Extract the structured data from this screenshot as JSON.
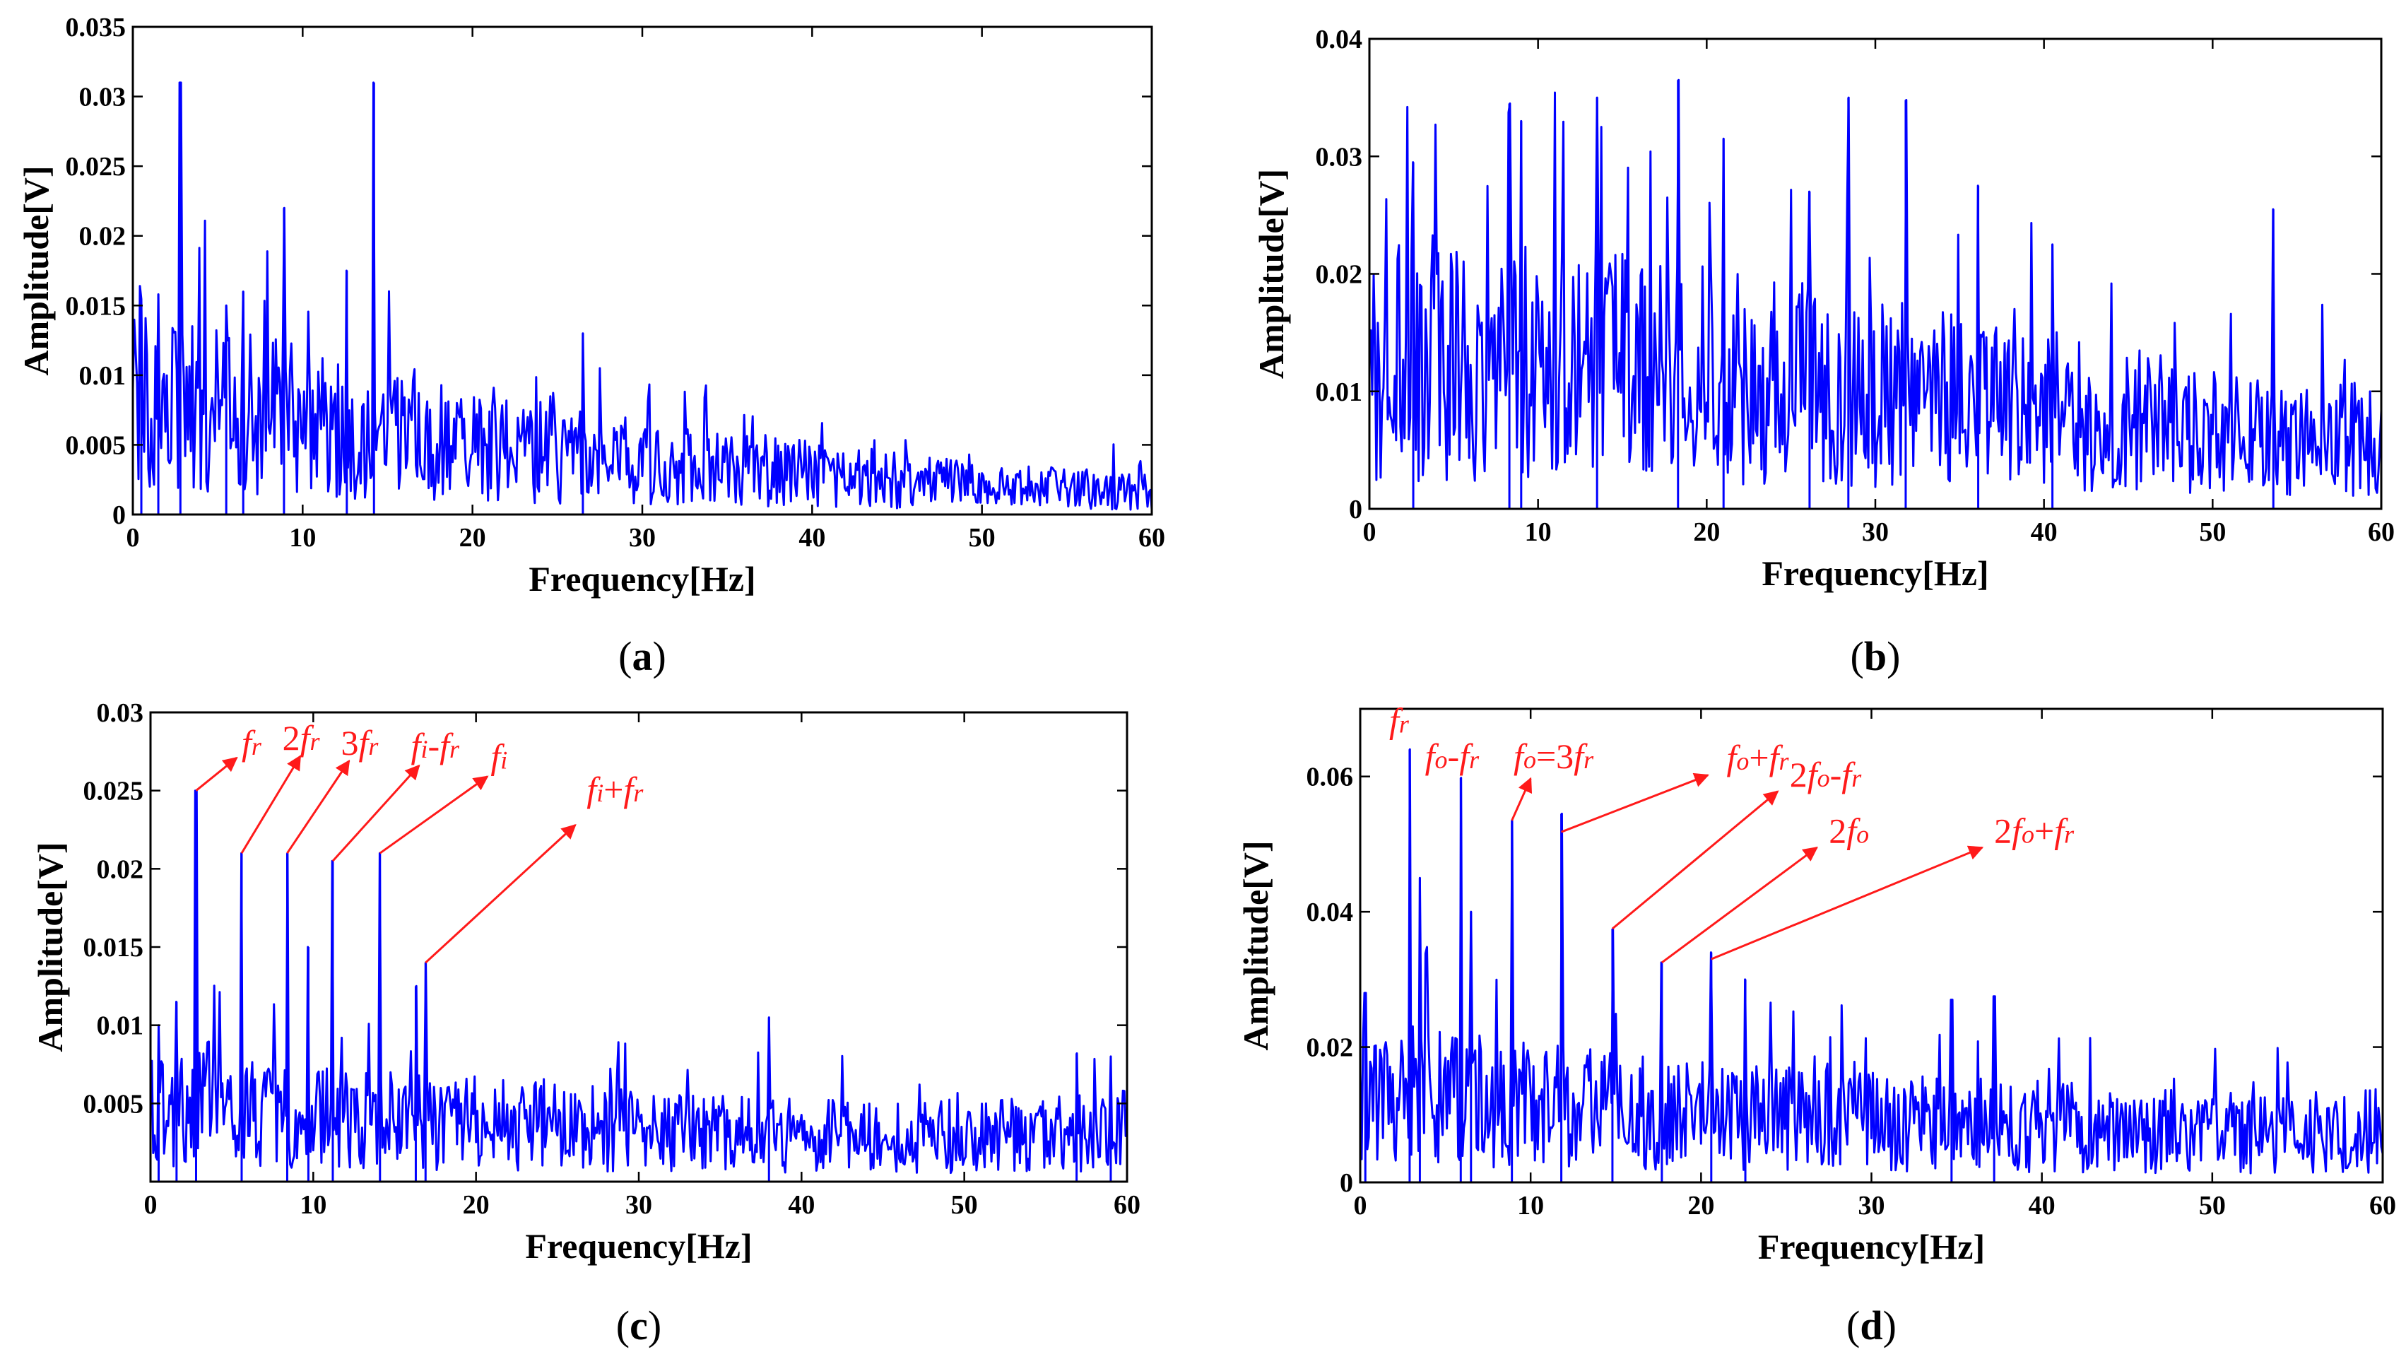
{
  "colors": {
    "signal": "#0000ff",
    "annotation": "#ff1a1a",
    "axis": "#000000"
  },
  "chart_data": [
    {
      "id": "a",
      "type": "line",
      "caption_letter": "a",
      "xlabel": "Frequency[Hz]",
      "ylabel": "Amplitude[V]",
      "xlim": [
        0,
        60
      ],
      "ylim": [
        0,
        0.035
      ],
      "xticks": [
        "0",
        "10",
        "20",
        "30",
        "40",
        "50",
        "60"
      ],
      "yticks": [
        "0",
        "0.005",
        "0.01",
        "0.015",
        "0.02",
        "0.025",
        "0.03",
        "0.035"
      ],
      "ytick_values": [
        0,
        0.005,
        0.01,
        0.015,
        0.02,
        0.025,
        0.03,
        0.035
      ],
      "baseline": [
        [
          0,
          0.012
        ],
        [
          2,
          0.009
        ],
        [
          4,
          0.009
        ],
        [
          7,
          0.009
        ],
        [
          10,
          0.008
        ],
        [
          14,
          0.007
        ],
        [
          20,
          0.006
        ],
        [
          30,
          0.0045
        ],
        [
          40,
          0.0035
        ],
        [
          50,
          0.0025
        ],
        [
          60,
          0.002
        ]
      ],
      "peaks": [
        [
          2.8,
          0.031
        ],
        [
          14.2,
          0.031
        ],
        [
          8.9,
          0.022
        ],
        [
          12.6,
          0.0175
        ],
        [
          6.5,
          0.016
        ],
        [
          1.5,
          0.0158
        ],
        [
          0.5,
          0.0135
        ],
        [
          26.5,
          0.013
        ],
        [
          5.5,
          0.015
        ]
      ],
      "annotations": []
    },
    {
      "id": "b",
      "type": "line",
      "caption_letter": "b",
      "xlabel": "Frequency[Hz]",
      "ylabel": "Amplitude[V]",
      "xlim": [
        0,
        60
      ],
      "ylim": [
        0,
        0.04
      ],
      "xticks": [
        "0",
        "10",
        "20",
        "30",
        "40",
        "50",
        "60"
      ],
      "yticks": [
        "0",
        "0.01",
        "0.02",
        "0.03",
        "0.04"
      ],
      "ytick_values": [
        0,
        0.01,
        0.02,
        0.03,
        0.04
      ],
      "baseline": [
        [
          0,
          0.015
        ],
        [
          10,
          0.015
        ],
        [
          20,
          0.014
        ],
        [
          30,
          0.012
        ],
        [
          40,
          0.01
        ],
        [
          50,
          0.008
        ],
        [
          60,
          0.007
        ]
      ],
      "peaks": [
        [
          18.3,
          0.0365
        ],
        [
          13.5,
          0.035
        ],
        [
          28.4,
          0.035
        ],
        [
          31.8,
          0.0348
        ],
        [
          8.3,
          0.0345
        ],
        [
          9.0,
          0.033
        ],
        [
          21,
          0.0315
        ],
        [
          2.6,
          0.0295
        ],
        [
          36.1,
          0.0275
        ],
        [
          26.1,
          0.027
        ],
        [
          53.6,
          0.0255
        ],
        [
          40.5,
          0.0225
        ]
      ],
      "annotations": []
    },
    {
      "id": "c",
      "type": "line",
      "caption_letter": "c",
      "xlabel": "Frequency[Hz]",
      "ylabel": "Amplitude[V]",
      "xlim": [
        0,
        60
      ],
      "ylim": [
        0,
        0.03
      ],
      "xticks": [
        "0",
        "10",
        "20",
        "30",
        "40",
        "50",
        "60"
      ],
      "yticks": [
        "0.005",
        "0.01",
        "0.015",
        "0.02",
        "0.025",
        "0.03"
      ],
      "ytick_values": [
        0.005,
        0.01,
        0.015,
        0.02,
        0.025,
        0.03
      ],
      "baseline": [
        [
          0,
          0.006
        ],
        [
          10,
          0.005
        ],
        [
          20,
          0.0045
        ],
        [
          30,
          0.004
        ],
        [
          40,
          0.0035
        ],
        [
          50,
          0.0035
        ],
        [
          60,
          0.004
        ]
      ],
      "peaks": [
        [
          2.8,
          0.025
        ],
        [
          5.6,
          0.021
        ],
        [
          8.4,
          0.021
        ],
        [
          11.2,
          0.0205
        ],
        [
          14.1,
          0.021
        ],
        [
          16.9,
          0.014
        ],
        [
          16.3,
          0.0125
        ],
        [
          9.7,
          0.015
        ],
        [
          38,
          0.0105
        ],
        [
          0.5,
          0.01
        ],
        [
          1.6,
          0.0115
        ],
        [
          56.9,
          0.0082
        ],
        [
          59,
          0.008
        ]
      ],
      "annotations": [
        {
          "parts": [
            {
              "t": "f"
            },
            {
              "t": "r",
              "s": 1
            }
          ],
          "tx": 5.6,
          "ty": 0.0273,
          "from": [
            2.8,
            0.025
          ],
          "to": [
            5.3,
            0.0271
          ]
        },
        {
          "parts": [
            {
              "t": "2",
              "u": 1
            },
            {
              "t": "f"
            },
            {
              "t": "r",
              "s": 1
            }
          ],
          "tx": 8.1,
          "ty": 0.0276,
          "from": [
            5.6,
            0.021
          ],
          "to": [
            9.2,
            0.0272
          ]
        },
        {
          "parts": [
            {
              "t": "3",
              "u": 1
            },
            {
              "t": "f"
            },
            {
              "t": "r",
              "s": 1
            }
          ],
          "tx": 11.7,
          "ty": 0.0273,
          "from": [
            8.4,
            0.021
          ],
          "to": [
            12.2,
            0.0269
          ]
        },
        {
          "parts": [
            {
              "t": "f"
            },
            {
              "t": "i",
              "s": 1
            },
            {
              "t": "-",
              "u": 1
            },
            {
              "t": "f"
            },
            {
              "t": "r",
              "s": 1
            }
          ],
          "tx": 16.0,
          "ty": 0.0271,
          "from": [
            11.2,
            0.0205
          ],
          "to": [
            16.5,
            0.0266
          ]
        },
        {
          "parts": [
            {
              "t": "f"
            },
            {
              "t": "i",
              "s": 1
            }
          ],
          "tx": 20.9,
          "ty": 0.0264,
          "from": [
            14.1,
            0.021
          ],
          "to": [
            20.7,
            0.0259
          ]
        },
        {
          "parts": [
            {
              "t": "f"
            },
            {
              "t": "i",
              "s": 1
            },
            {
              "t": "+",
              "u": 1
            },
            {
              "t": "f"
            },
            {
              "t": "r",
              "s": 1
            }
          ],
          "tx": 26.8,
          "ty": 0.0243,
          "from": [
            16.9,
            0.014
          ],
          "to": [
            26.1,
            0.0228
          ]
        }
      ]
    },
    {
      "id": "d",
      "type": "line",
      "caption_letter": "d",
      "xlabel": "Frequency[Hz]",
      "ylabel": "Amplitude[V]",
      "xlim": [
        0,
        60
      ],
      "ylim": [
        0,
        0.07
      ],
      "xticks": [
        "0",
        "10",
        "20",
        "30",
        "40",
        "50",
        "60"
      ],
      "yticks": [
        "0",
        "0.02",
        "0.04",
        "0.06"
      ],
      "ytick_values": [
        0,
        0.02,
        0.04,
        0.06
      ],
      "baseline": [
        [
          0,
          0.016
        ],
        [
          10,
          0.014
        ],
        [
          20,
          0.012
        ],
        [
          30,
          0.011
        ],
        [
          40,
          0.01
        ],
        [
          50,
          0.009
        ],
        [
          60,
          0.008
        ]
      ],
      "peaks": [
        [
          2.9,
          0.064
        ],
        [
          5.9,
          0.0598
        ],
        [
          8.9,
          0.0535
        ],
        [
          11.8,
          0.0545
        ],
        [
          14.8,
          0.0375
        ],
        [
          17.7,
          0.0325
        ],
        [
          20.6,
          0.034
        ],
        [
          0.3,
          0.028
        ],
        [
          34.7,
          0.027
        ],
        [
          37.2,
          0.0275
        ],
        [
          22.6,
          0.03
        ],
        [
          3.5,
          0.045
        ],
        [
          6.5,
          0.04
        ]
      ],
      "annotations": [
        {
          "parts": [
            {
              "t": "f"
            },
            {
              "t": "r",
              "s": 1
            }
          ],
          "tx": 1.7,
          "ty": 0.0665,
          "from": null,
          "to": null
        },
        {
          "parts": [
            {
              "t": "f"
            },
            {
              "t": "o",
              "s": 1
            },
            {
              "t": "-",
              "u": 1
            },
            {
              "t": "f"
            },
            {
              "t": "r",
              "s": 1
            }
          ],
          "tx": 3.8,
          "ty": 0.0612,
          "from": null,
          "to": null
        },
        {
          "parts": [
            {
              "t": "f"
            },
            {
              "t": "o",
              "s": 1
            },
            {
              "t": "=3",
              "u": 1
            },
            {
              "t": "f"
            },
            {
              "t": "r",
              "s": 1
            }
          ],
          "tx": 9.0,
          "ty": 0.0612,
          "from": [
            8.9,
            0.0535
          ],
          "to": [
            10.0,
            0.0597
          ]
        },
        {
          "parts": [
            {
              "t": "f"
            },
            {
              "t": "o",
              "s": 1
            },
            {
              "t": "+",
              "u": 1
            },
            {
              "t": "f"
            },
            {
              "t": "r",
              "s": 1
            }
          ],
          "tx": 21.5,
          "ty": 0.061,
          "from": [
            11.8,
            0.0518
          ],
          "to": [
            20.4,
            0.0602
          ]
        },
        {
          "parts": [
            {
              "t": "2",
              "u": 1
            },
            {
              "t": "f"
            },
            {
              "t": "o",
              "s": 1
            },
            {
              "t": "-",
              "u": 1
            },
            {
              "t": "f"
            },
            {
              "t": "r",
              "s": 1
            }
          ],
          "tx": 25.2,
          "ty": 0.0585,
          "from": [
            14.8,
            0.0375
          ],
          "to": [
            24.5,
            0.0578
          ]
        },
        {
          "parts": [
            {
              "t": "2",
              "u": 1
            },
            {
              "t": "f"
            },
            {
              "t": "o",
              "s": 1
            }
          ],
          "tx": 27.5,
          "ty": 0.0502,
          "from": [
            17.7,
            0.0325
          ],
          "to": [
            26.8,
            0.0495
          ]
        },
        {
          "parts": [
            {
              "t": "2",
              "u": 1
            },
            {
              "t": "f"
            },
            {
              "t": "o",
              "s": 1
            },
            {
              "t": "+",
              "u": 1
            },
            {
              "t": "f"
            },
            {
              "t": "r",
              "s": 1
            }
          ],
          "tx": 37.2,
          "ty": 0.0502,
          "from": [
            20.6,
            0.033
          ],
          "to": [
            36.5,
            0.0495
          ]
        }
      ]
    }
  ]
}
